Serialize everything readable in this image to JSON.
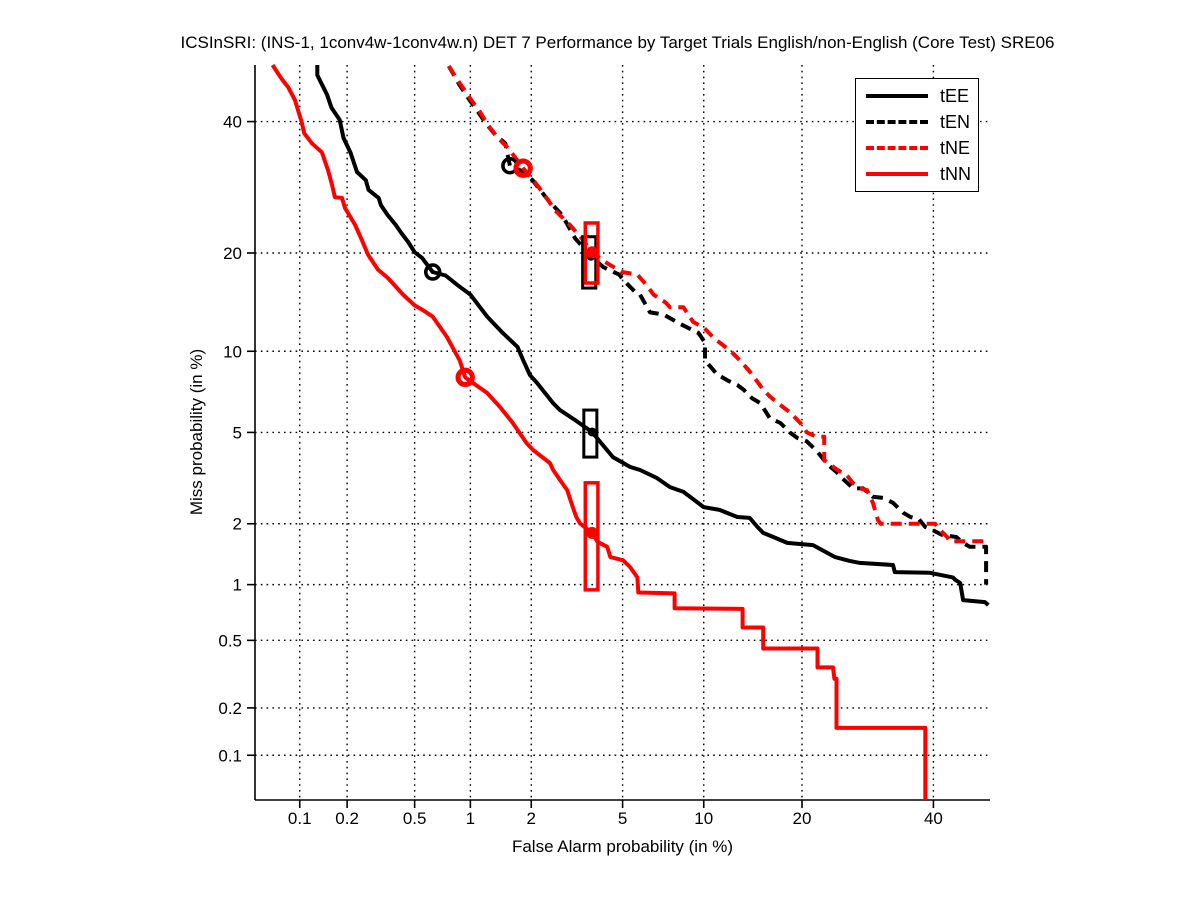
{
  "chart_data": {
    "type": "line",
    "variant": "DET curve (normal-deviate / probit scale on both axes)",
    "title": "ICSInSRI: (INS-1, 1conv4w-1conv4w.n) DET 7 Performance by Target Trials English/non-English (Core Test) SRE06",
    "xlabel": "False Alarm probability (in %)",
    "ylabel": "Miss probability (in %)",
    "x_tick_labels": [
      "0.1",
      "0.2",
      "0.5",
      "1",
      "2",
      "5",
      "10",
      "20",
      "40"
    ],
    "y_tick_labels": [
      "0.1",
      "0.2",
      "0.5",
      "1",
      "2",
      "5",
      "10",
      "20",
      "40"
    ],
    "x_range_pct": [
      0.05,
      50
    ],
    "y_range_pct": [
      0.05,
      50
    ],
    "grid": "dotted",
    "legend_position": "top-right",
    "colors": {
      "black": "#000000",
      "red": "#ff0000"
    },
    "series": [
      {
        "name": "tEE",
        "color": "#000000",
        "line_style": "solid",
        "points": [
          [
            0.13,
            50
          ],
          [
            0.13,
            48.2
          ],
          [
            0.15,
            44.7
          ],
          [
            0.16,
            42.4
          ],
          [
            0.18,
            40.3
          ],
          [
            0.19,
            37.2
          ],
          [
            0.21,
            34.7
          ],
          [
            0.23,
            31.6
          ],
          [
            0.26,
            30.3
          ],
          [
            0.27,
            28.8
          ],
          [
            0.31,
            27.6
          ],
          [
            0.32,
            26.5
          ],
          [
            0.35,
            25.1
          ],
          [
            0.39,
            23.7
          ],
          [
            0.42,
            22.6
          ],
          [
            0.46,
            21.4
          ],
          [
            0.5,
            20.1
          ],
          [
            0.55,
            19.4
          ],
          [
            0.63,
            17.7
          ],
          [
            0.74,
            17.3
          ],
          [
            0.86,
            16.2
          ],
          [
            1.0,
            15.2
          ],
          [
            1.22,
            13.0
          ],
          [
            1.46,
            11.5
          ],
          [
            1.72,
            10.35
          ],
          [
            1.83,
            9.33
          ],
          [
            1.97,
            8.26
          ],
          [
            2.13,
            7.73
          ],
          [
            2.52,
            6.51
          ],
          [
            2.71,
            6.12
          ],
          [
            3.16,
            5.6
          ],
          [
            3.74,
            5.02
          ],
          [
            4.57,
            3.96
          ],
          [
            5.35,
            3.6
          ],
          [
            5.86,
            3.49
          ],
          [
            6.8,
            3.22
          ],
          [
            7.6,
            2.94
          ],
          [
            8.5,
            2.8
          ],
          [
            10.0,
            2.39
          ],
          [
            11.3,
            2.32
          ],
          [
            12.9,
            2.15
          ],
          [
            14.1,
            2.13
          ],
          [
            14.9,
            1.93
          ],
          [
            15.5,
            1.81
          ],
          [
            16.6,
            1.73
          ],
          [
            18.2,
            1.62
          ],
          [
            21.4,
            1.58
          ],
          [
            24.4,
            1.38
          ],
          [
            26.5,
            1.32
          ],
          [
            28.0,
            1.29
          ],
          [
            33.2,
            1.26
          ],
          [
            33.5,
            1.16
          ],
          [
            39.4,
            1.15
          ],
          [
            43.4,
            1.09
          ],
          [
            43.8,
            1.06
          ],
          [
            44.7,
            1.02
          ],
          [
            45.2,
            0.83
          ],
          [
            49.1,
            0.81
          ],
          [
            49.7,
            0.78
          ]
        ],
        "markers": {
          "circle": {
            "fa": 0.63,
            "miss": 17.7
          },
          "box": {
            "fa": [
              3.45,
              3.92
            ],
            "miss": [
              3.96,
              6.12
            ],
            "dot": [
              3.74,
              5.02
            ]
          }
        }
      },
      {
        "name": "tEN",
        "color": "#000000",
        "line_style": "dashed",
        "points": [
          [
            0.77,
            49.8
          ],
          [
            0.88,
            46.4
          ],
          [
            0.99,
            43.8
          ],
          [
            1.08,
            42.0
          ],
          [
            1.19,
            39.9
          ],
          [
            1.34,
            37.7
          ],
          [
            1.5,
            36.3
          ],
          [
            1.58,
            32.6
          ],
          [
            1.79,
            31.8
          ],
          [
            2.03,
            30.3
          ],
          [
            2.2,
            28.8
          ],
          [
            2.39,
            27.3
          ],
          [
            2.77,
            25.1
          ],
          [
            3.16,
            21.9
          ],
          [
            3.7,
            19.6
          ],
          [
            4.16,
            18.3
          ],
          [
            4.84,
            17.4
          ],
          [
            5.11,
            16.6
          ],
          [
            5.6,
            15.5
          ],
          [
            5.83,
            15.3
          ],
          [
            6.4,
            13.4
          ],
          [
            7.2,
            13.2
          ],
          [
            8.3,
            12.3
          ],
          [
            9.6,
            11.5
          ],
          [
            10.1,
            10.7
          ],
          [
            10.1,
            9.3
          ],
          [
            11.1,
            8.3
          ],
          [
            12.0,
            7.9
          ],
          [
            12.9,
            7.6
          ],
          [
            13.5,
            7.3
          ],
          [
            14.3,
            6.8
          ],
          [
            15.2,
            6.5
          ],
          [
            16.2,
            5.7
          ],
          [
            17.4,
            5.45
          ],
          [
            18.5,
            5.0
          ],
          [
            19.4,
            4.75
          ],
          [
            20.6,
            4.6
          ],
          [
            21.9,
            4.2
          ],
          [
            23.3,
            3.7
          ],
          [
            24.7,
            3.4
          ],
          [
            25.5,
            3.2
          ],
          [
            27.0,
            2.9
          ],
          [
            28.5,
            2.9
          ],
          [
            30.0,
            2.66
          ],
          [
            31.6,
            2.63
          ],
          [
            33.2,
            2.5
          ],
          [
            34.9,
            2.25
          ],
          [
            36.1,
            2.15
          ],
          [
            37.5,
            2.1
          ],
          [
            38.6,
            1.93
          ],
          [
            39.8,
            1.87
          ],
          [
            41.5,
            1.77
          ],
          [
            44.0,
            1.73
          ],
          [
            45.2,
            1.62
          ],
          [
            46.4,
            1.55
          ],
          [
            49.3,
            1.55
          ],
          [
            49.3,
            1.0
          ]
        ],
        "markers": {
          "circle": {
            "fa": 1.58,
            "miss": 32.6
          },
          "box": {
            "fa": [
              3.41,
              3.88
            ],
            "miss": [
              15.9,
              22.1
            ],
            "dot": [
              3.7,
              19.6
            ]
          }
        }
      },
      {
        "name": "tNE",
        "color": "#ff0000",
        "line_style": "dashed",
        "points": [
          [
            0.77,
            49.8
          ],
          [
            0.85,
            47.5
          ],
          [
            1.01,
            43.8
          ],
          [
            1.12,
            41.7
          ],
          [
            1.23,
            39.4
          ],
          [
            1.38,
            37.2
          ],
          [
            1.55,
            35.5
          ],
          [
            1.83,
            32.2
          ],
          [
            2.08,
            30.0
          ],
          [
            2.31,
            28.0
          ],
          [
            2.57,
            25.8
          ],
          [
            3.0,
            23.7
          ],
          [
            3.42,
            21.7
          ],
          [
            3.74,
            20.1
          ],
          [
            4.24,
            18.9
          ],
          [
            4.97,
            17.7
          ],
          [
            5.72,
            17.4
          ],
          [
            6.3,
            16.0
          ],
          [
            6.6,
            15.2
          ],
          [
            7.3,
            14.4
          ],
          [
            7.6,
            13.9
          ],
          [
            8.5,
            13.9
          ],
          [
            9.2,
            12.5
          ],
          [
            10.0,
            12.0
          ],
          [
            10.8,
            11.1
          ],
          [
            12.3,
            10.0
          ],
          [
            12.9,
            9.5
          ],
          [
            13.5,
            9.0
          ],
          [
            14.1,
            8.5
          ],
          [
            14.9,
            7.8
          ],
          [
            15.5,
            7.3
          ],
          [
            16.2,
            6.9
          ],
          [
            17.4,
            6.4
          ],
          [
            18.5,
            6.0
          ],
          [
            19.8,
            5.45
          ],
          [
            20.6,
            5.0
          ],
          [
            21.9,
            4.8
          ],
          [
            22.9,
            4.8
          ],
          [
            22.9,
            3.85
          ],
          [
            24.7,
            3.5
          ],
          [
            26.1,
            3.3
          ],
          [
            27.0,
            3.06
          ],
          [
            28.0,
            2.9
          ],
          [
            29.1,
            2.85
          ],
          [
            30.0,
            2.5
          ],
          [
            30.8,
            2.08
          ],
          [
            31.2,
            2.0
          ],
          [
            40.3,
            2.0
          ],
          [
            40.9,
            1.9
          ],
          [
            42.4,
            1.73
          ],
          [
            42.8,
            1.65
          ],
          [
            49.4,
            1.65
          ]
        ],
        "markers": {
          "circle": {
            "fa": 1.83,
            "miss": 32.2
          },
          "box": {
            "fa": [
              3.5,
              3.96
            ],
            "miss": [
              16.45,
              23.97
            ],
            "dot": [
              3.74,
              20.1
            ]
          }
        }
      },
      {
        "name": "tNN",
        "color": "#ff0000",
        "line_style": "solid",
        "points": [
          [
            0.066,
            50
          ],
          [
            0.073,
            48.2
          ],
          [
            0.077,
            47.3
          ],
          [
            0.084,
            46.0
          ],
          [
            0.093,
            43.8
          ],
          [
            0.103,
            39.9
          ],
          [
            0.107,
            38.0
          ],
          [
            0.12,
            36.3
          ],
          [
            0.139,
            34.8
          ],
          [
            0.152,
            31.9
          ],
          [
            0.161,
            29.6
          ],
          [
            0.168,
            27.7
          ],
          [
            0.186,
            27.6
          ],
          [
            0.194,
            26.1
          ],
          [
            0.224,
            23.7
          ],
          [
            0.246,
            21.7
          ],
          [
            0.268,
            19.8
          ],
          [
            0.307,
            18.0
          ],
          [
            0.352,
            17.0
          ],
          [
            0.43,
            15.2
          ],
          [
            0.5,
            14.1
          ],
          [
            0.56,
            13.6
          ],
          [
            0.63,
            13.0
          ],
          [
            0.75,
            11.2
          ],
          [
            0.88,
            9.3
          ],
          [
            0.94,
            8.1
          ],
          [
            1.22,
            7.1
          ],
          [
            1.41,
            6.3
          ],
          [
            1.62,
            5.5
          ],
          [
            1.9,
            4.53
          ],
          [
            2.04,
            4.24
          ],
          [
            2.44,
            3.74
          ],
          [
            2.52,
            3.5
          ],
          [
            2.71,
            3.16
          ],
          [
            2.92,
            2.85
          ],
          [
            3.09,
            2.39
          ],
          [
            3.2,
            2.15
          ],
          [
            3.32,
            2.01
          ],
          [
            3.74,
            1.81
          ],
          [
            3.95,
            1.64
          ],
          [
            4.33,
            1.55
          ],
          [
            4.46,
            1.38
          ],
          [
            5.03,
            1.33
          ],
          [
            5.35,
            1.23
          ],
          [
            5.72,
            1.09
          ],
          [
            5.77,
            0.91
          ],
          [
            7.9,
            0.9
          ],
          [
            7.9,
            0.75
          ],
          [
            13.4,
            0.745
          ],
          [
            13.4,
            0.59
          ],
          [
            15.5,
            0.59
          ],
          [
            15.5,
            0.45
          ],
          [
            22.0,
            0.45
          ],
          [
            22.0,
            0.35
          ],
          [
            24.1,
            0.35
          ],
          [
            24.3,
            0.3
          ],
          [
            24.6,
            0.3
          ],
          [
            24.6,
            0.15
          ],
          [
            38.6,
            0.15
          ],
          [
            38.6,
            0.05
          ]
        ],
        "markers": {
          "circle": {
            "fa": 0.94,
            "miss": 8.1
          },
          "box": {
            "fa": [
              3.5,
              3.96
            ],
            "miss": [
              0.94,
              3.07
            ],
            "dot": [
              3.74,
              1.81
            ]
          }
        }
      }
    ]
  }
}
